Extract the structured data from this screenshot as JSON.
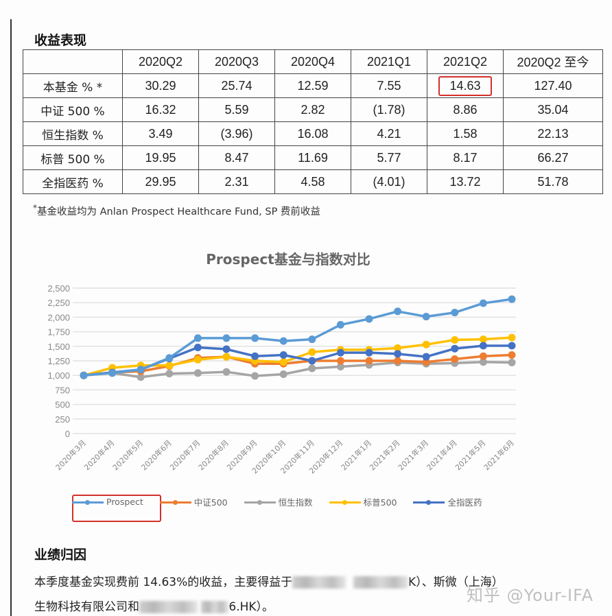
{
  "performance": {
    "title": "收益表现",
    "columns": [
      "",
      "2020Q2",
      "2020Q3",
      "2020Q4",
      "2021Q1",
      "2021Q2",
      "2020Q2 至今"
    ],
    "rows": [
      {
        "label": "本基金  % *",
        "values": [
          "30.29",
          "25.74",
          "12.59",
          "7.55",
          "14.63",
          "127.40"
        ]
      },
      {
        "label": "中证 500 %",
        "values": [
          "16.32",
          "5.59",
          "2.82",
          "(1.78)",
          "8.86",
          "35.04"
        ]
      },
      {
        "label": "恒生指数  %",
        "values": [
          "3.49",
          "(3.96)",
          "16.08",
          "4.21",
          "1.58",
          "22.13"
        ]
      },
      {
        "label": "标普 500 %",
        "values": [
          "19.95",
          "8.47",
          "11.69",
          "5.77",
          "8.17",
          "66.27"
        ]
      },
      {
        "label": "全指医药  %",
        "values": [
          "29.95",
          "2.31",
          "4.58",
          "(4.01)",
          "13.72",
          "51.78"
        ]
      }
    ],
    "highlighted_cell": {
      "row": 0,
      "col": 4,
      "value": "14.63",
      "color": "#d3302b"
    },
    "footnote_mark": "*",
    "footnote": "基金收益均为 Anlan Prospect Healthcare Fund, SP 费前收益"
  },
  "chart_data": {
    "type": "line",
    "title": "Prospect基金与指数对比",
    "xlabel": "",
    "ylabel": "",
    "ylim": [
      0,
      2500
    ],
    "yticks": [
      0,
      250,
      500,
      750,
      1000,
      1250,
      1500,
      1750,
      2000,
      2250,
      2500
    ],
    "ytick_labels": [
      "0",
      "250",
      "500",
      "750",
      "1,000",
      "1,250",
      "1,500",
      "1,750",
      "2,000",
      "2,250",
      "2,500"
    ],
    "grid": true,
    "legend_position": "bottom",
    "categories": [
      "2020年3月",
      "2020年4月",
      "2020年5月",
      "2020年6月",
      "2020年7月",
      "2020年8月",
      "2020年9月",
      "2020年10月",
      "2020年11月",
      "2020年12月",
      "2021年1月",
      "2021年2月",
      "2021年3月",
      "2021年4月",
      "2021年5月",
      "2021年6月"
    ],
    "series": [
      {
        "name": "Prospect",
        "color": "#5b9bd5",
        "values": [
          1000,
          1040,
          1100,
          1300,
          1640,
          1640,
          1640,
          1590,
          1620,
          1870,
          1970,
          2100,
          2010,
          2080,
          2240,
          2310
        ]
      },
      {
        "name": "中证500",
        "color": "#ed7d31",
        "values": [
          1000,
          1050,
          1070,
          1160,
          1300,
          1320,
          1200,
          1200,
          1250,
          1250,
          1250,
          1250,
          1230,
          1280,
          1330,
          1350
        ]
      },
      {
        "name": "恒生指数",
        "color": "#a5a5a5",
        "values": [
          1000,
          1040,
          970,
          1030,
          1040,
          1060,
          990,
          1020,
          1120,
          1150,
          1180,
          1220,
          1200,
          1210,
          1230,
          1220
        ]
      },
      {
        "name": "标普500",
        "color": "#ffc000",
        "values": [
          1000,
          1130,
          1170,
          1170,
          1270,
          1320,
          1250,
          1230,
          1400,
          1440,
          1440,
          1470,
          1530,
          1610,
          1620,
          1650
        ]
      },
      {
        "name": "全指医药",
        "color": "#4472c4",
        "values": [
          1000,
          1050,
          1100,
          1290,
          1480,
          1450,
          1330,
          1350,
          1250,
          1390,
          1390,
          1370,
          1320,
          1460,
          1510,
          1510
        ]
      }
    ],
    "highlighted_legend_item": "Prospect"
  },
  "attribution": {
    "title": "业绩归因",
    "line1_prefix": "本季度基金实现费前  14.63%的收益，主要得益于",
    "line1_suffix": "K）、斯微（上海）",
    "line2_prefix": "生物科技有限公司和",
    "line2_suffix": "6.HK）。"
  },
  "watermark": "知乎 @Your-IFA"
}
